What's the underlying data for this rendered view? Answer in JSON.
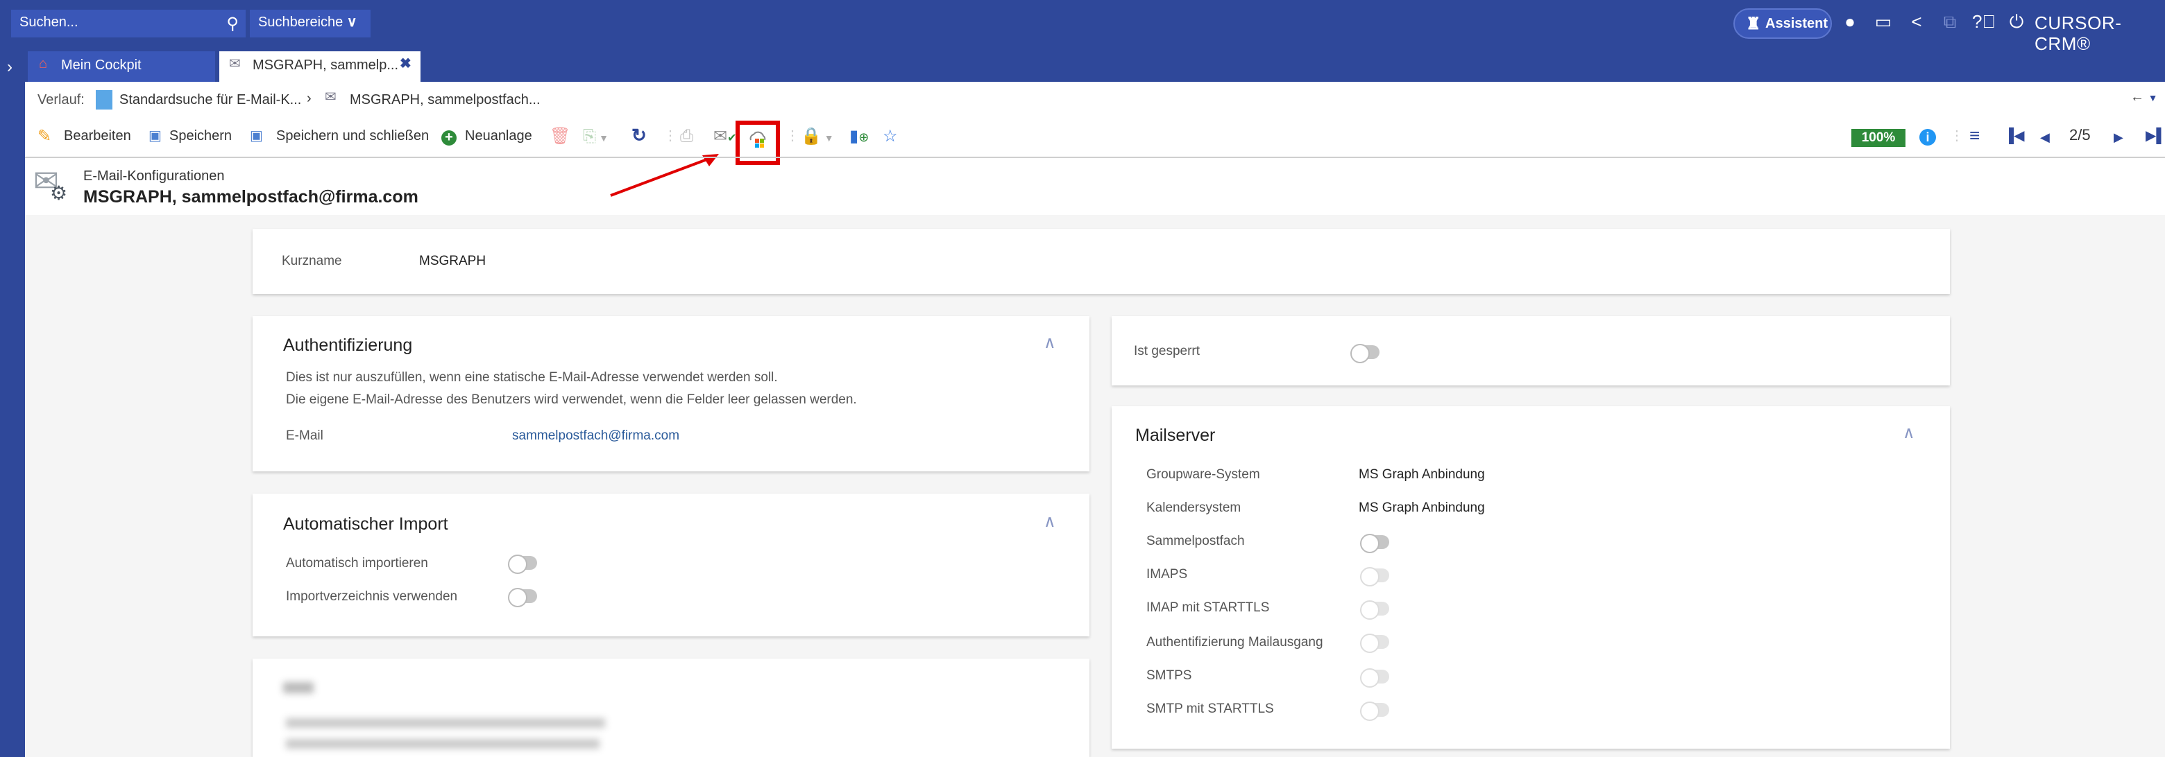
{
  "topbar": {
    "search_placeholder": "Suchen...",
    "search_scope": "Suchbereiche",
    "assistant": "Assistent",
    "brand": "CURSOR-CRM®",
    "icons": [
      "user-icon",
      "inbox-icon",
      "share-icon",
      "external-link-icon",
      "help-icon",
      "power-icon"
    ]
  },
  "tabs": [
    {
      "label": "Mein Cockpit",
      "icon": "home-icon"
    },
    {
      "label": "MSGRAPH, sammelp...",
      "icon": "mail-config-icon",
      "active": true
    }
  ],
  "history": {
    "label": "Verlauf:",
    "items": [
      "Standardsuche für E-Mail-K...",
      "MSGRAPH, sammelpostfach..."
    ]
  },
  "toolbar": {
    "edit": "Bearbeiten",
    "save": "Speichern",
    "save_close": "Speichern und schließen",
    "new": "Neuanlage",
    "progress": "100%",
    "pager": "2/5",
    "highlighted_button": "ms-graph-cloud-button",
    "accent": "#e00000",
    "badge_color": "#2e8b3a"
  },
  "header": {
    "category": "E-Mail-Konfigurationen",
    "title": "MSGRAPH, sammelpostfach@firma.com"
  },
  "kurzname": {
    "label": "Kurzname",
    "value": "MSGRAPH"
  },
  "auth": {
    "title": "Authentifizierung",
    "hint1": "Dies ist nur auszufüllen, wenn eine statische E-Mail-Adresse verwendet werden soll.",
    "hint2": "Die eigene E-Mail-Adresse des Benutzers wird verwendet, wenn die Felder leer gelassen werden.",
    "email_label": "E-Mail",
    "email_value": "sammelpostfach@firma.com"
  },
  "import": {
    "title": "Automatischer Import",
    "fields": [
      {
        "label": "Automatisch importieren",
        "on": false
      },
      {
        "label": "Importverzeichnis verwenden",
        "on": false
      }
    ]
  },
  "locked": {
    "label": "Ist gesperrt",
    "on": false
  },
  "mailserver": {
    "title": "Mailserver",
    "groupware_label": "Groupware-System",
    "groupware_value": "MS Graph Anbindung",
    "calendar_label": "Kalendersystem",
    "calendar_value": "MS Graph Anbindung",
    "toggles": [
      {
        "label": "Sammelpostfach",
        "on": false,
        "disabled": false
      },
      {
        "label": "IMAPS",
        "on": false,
        "disabled": true
      },
      {
        "label": "IMAP mit STARTTLS",
        "on": false,
        "disabled": true
      },
      {
        "label": "Authentifizierung Mailausgang",
        "on": false,
        "disabled": true
      },
      {
        "label": "SMTPS",
        "on": false,
        "disabled": true
      },
      {
        "label": "SMTP mit STARTTLS",
        "on": false,
        "disabled": true
      }
    ]
  }
}
